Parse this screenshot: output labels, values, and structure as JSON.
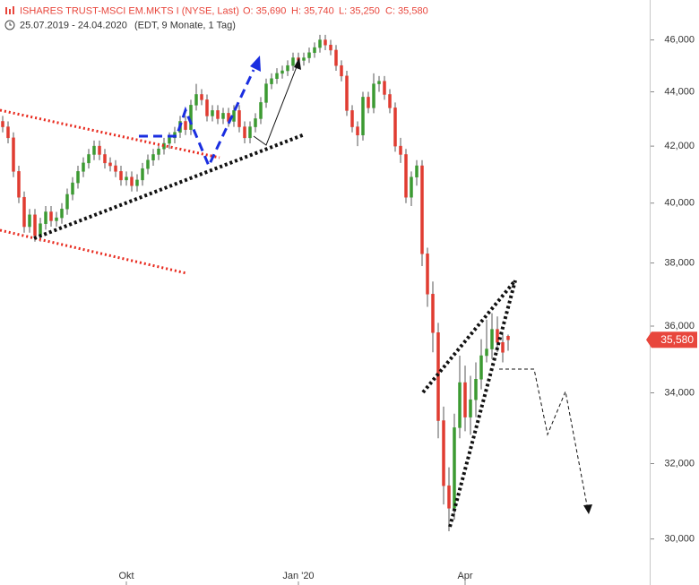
{
  "header": {
    "title": "ISHARES TRUST-MSCI EM.MKTS I (NYSE, Last)",
    "quote": [
      "O: 35,690",
      "H: 35,740",
      "L: 35,250",
      "C: 35,580"
    ],
    "range": "25.07.2019 - 24.04.2020",
    "info": "(EDT, 9 Monate, 1 Tag)"
  },
  "chart_data": {
    "type": "candlestick",
    "log": true,
    "grid": false,
    "up_color": "#3c9a32",
    "down_color": "#e03c31",
    "label_color": "#e8463c",
    "ylim": [
      47600,
      28840
    ],
    "yticks": [
      {
        "value": 46000,
        "label": "46,000"
      },
      {
        "value": 44000,
        "label": "44,000"
      },
      {
        "value": 42000,
        "label": "42,000"
      },
      {
        "value": 40000,
        "label": "40,000"
      },
      {
        "value": 38000,
        "label": "38,000"
      },
      {
        "value": 36000,
        "label": "36,000"
      },
      {
        "value": 34000,
        "label": "34,000"
      },
      {
        "value": 32000,
        "label": "32,000"
      },
      {
        "value": 30000,
        "label": "30,000"
      }
    ],
    "last_price": {
      "value": 35580,
      "label": "35,580"
    },
    "categories": [
      null,
      null,
      null,
      null,
      null,
      null,
      null,
      null,
      null,
      null,
      null,
      null,
      null,
      null,
      null,
      null,
      null,
      null,
      null,
      null,
      null,
      null,
      null,
      null,
      "Okt",
      null,
      null,
      null,
      null,
      null,
      null,
      null,
      null,
      null,
      null,
      null,
      null,
      null,
      null,
      null,
      null,
      null,
      null,
      null,
      null,
      null,
      null,
      null,
      null,
      null,
      null,
      null,
      null,
      null,
      null,
      null,
      "Jan '20",
      null,
      null,
      null,
      null,
      null,
      null,
      null,
      null,
      null,
      null,
      null,
      null,
      null,
      null,
      null,
      null,
      null,
      null,
      null,
      null,
      null,
      null,
      null,
      null,
      null,
      null,
      null,
      null,
      null,
      null,
      "Apr",
      null,
      null,
      null,
      null,
      null,
      null,
      null,
      null
    ],
    "open": [
      43000,
      42900,
      42700,
      42300,
      41100,
      40200,
      39200,
      39600,
      38900,
      39300,
      39700,
      39400,
      39500,
      39800,
      40300,
      40700,
      41100,
      41400,
      41700,
      42000,
      41700,
      41400,
      41300,
      41100,
      40800,
      40900,
      40600,
      40800,
      41200,
      41500,
      41700,
      41900,
      42100,
      42300,
      42500,
      42900,
      42600,
      43500,
      43900,
      43700,
      43100,
      43300,
      43000,
      43200,
      42900,
      43300,
      42700,
      42300,
      42700,
      43000,
      43600,
      44300,
      44500,
      44700,
      44800,
      45000,
      45300,
      45200,
      45300,
      45500,
      45700,
      46000,
      45800,
      45600,
      45000,
      44600,
      43300,
      42700,
      42400,
      43800,
      43400,
      44300,
      44400,
      43900,
      43400,
      42000,
      41700,
      40200,
      40900,
      41300,
      38300,
      37000,
      35800,
      33200,
      31400,
      30800,
      33000,
      34300,
      33300,
      33800,
      34400,
      35100,
      35300,
      35900,
      35500,
      35690
    ],
    "high": [
      43200,
      43100,
      42900,
      42500,
      41300,
      40400,
      39800,
      39800,
      39500,
      39900,
      39900,
      39700,
      40000,
      40500,
      40900,
      41300,
      41600,
      41900,
      42200,
      42200,
      41900,
      41600,
      41500,
      41300,
      41100,
      41100,
      41000,
      41400,
      41700,
      41900,
      42100,
      42300,
      42500,
      42700,
      43100,
      43100,
      43700,
      44300,
      44100,
      43900,
      43500,
      43500,
      43400,
      43400,
      43500,
      43500,
      42900,
      42900,
      43200,
      43800,
      44500,
      44700,
      44900,
      45000,
      45200,
      45500,
      45500,
      45500,
      45700,
      45900,
      46200,
      46200,
      46000,
      45800,
      45200,
      44800,
      43500,
      42900,
      44000,
      44000,
      44700,
      44600,
      44600,
      44100,
      43600,
      42300,
      41900,
      41100,
      41500,
      41500,
      38500,
      37400,
      36100,
      33600,
      31900,
      33400,
      35100,
      34800,
      34500,
      34900,
      35600,
      36200,
      36400,
      36300,
      35800,
      35740
    ],
    "low": [
      42700,
      42500,
      42100,
      40900,
      40000,
      39000,
      39000,
      38700,
      38700,
      39100,
      39200,
      39200,
      39300,
      39600,
      40100,
      40500,
      40900,
      41200,
      41500,
      41500,
      41200,
      41100,
      40900,
      40600,
      40600,
      40400,
      40400,
      40600,
      41000,
      41300,
      41500,
      41700,
      41900,
      42100,
      42300,
      42400,
      42400,
      43300,
      43500,
      42900,
      42900,
      42800,
      42800,
      42700,
      42700,
      42500,
      42100,
      42100,
      42500,
      42800,
      43400,
      44100,
      44300,
      44500,
      44600,
      44800,
      45000,
      45000,
      45100,
      45300,
      45500,
      45600,
      45400,
      44800,
      44400,
      43100,
      42500,
      42000,
      42200,
      43200,
      43200,
      44000,
      43700,
      43200,
      41800,
      41400,
      40000,
      39900,
      40600,
      37900,
      36600,
      35200,
      32700,
      30900,
      30200,
      30500,
      32700,
      32900,
      32800,
      33300,
      34100,
      34900,
      35000,
      35200,
      34900,
      35250
    ],
    "close": [
      42900,
      42700,
      42300,
      41100,
      40200,
      39200,
      39600,
      38900,
      39300,
      39700,
      39400,
      39500,
      39800,
      40300,
      40700,
      41100,
      41400,
      41700,
      42000,
      41700,
      41400,
      41300,
      41100,
      40800,
      40900,
      40600,
      40800,
      41200,
      41500,
      41700,
      41900,
      42100,
      42300,
      42500,
      42900,
      42600,
      43500,
      43900,
      43700,
      43100,
      43300,
      43000,
      43200,
      42900,
      43300,
      42700,
      42300,
      42700,
      43000,
      43600,
      44300,
      44500,
      44700,
      44800,
      45000,
      45300,
      45200,
      45300,
      45500,
      45700,
      46000,
      45800,
      45600,
      45000,
      44600,
      43300,
      42700,
      42400,
      43800,
      43400,
      44300,
      44400,
      43900,
      43400,
      42000,
      41700,
      40200,
      40900,
      41300,
      38300,
      37000,
      35800,
      33200,
      31400,
      30800,
      33000,
      34300,
      33300,
      33800,
      34400,
      35100,
      35300,
      35900,
      35500,
      35200,
      35580
    ]
  }
}
